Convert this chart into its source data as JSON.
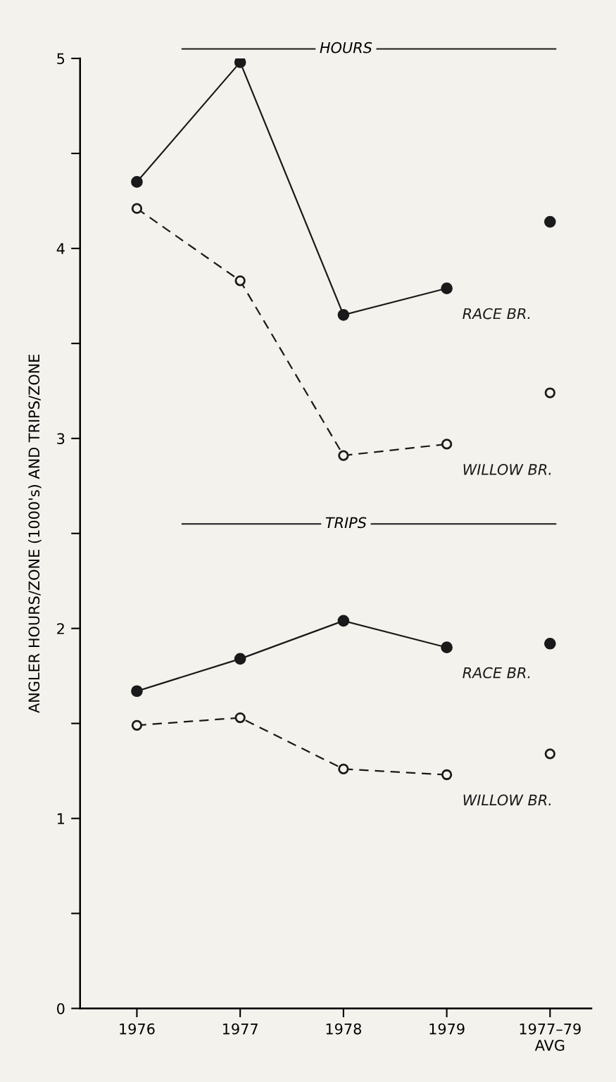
{
  "chart_data": {
    "type": "line",
    "ylabel": "ANGLER HOURS/ZONE (1000's) AND TRIPS/ZONE",
    "categories": [
      "1976",
      "1977",
      "1978",
      "1979",
      "1977–79\nAVG"
    ],
    "ylim": [
      0,
      5
    ],
    "yticks": [
      0,
      {
        "value": 0.5,
        "label": null
      },
      1,
      {
        "value": 1.5,
        "label": null
      },
      2,
      {
        "value": 2.5,
        "label": null
      },
      3,
      {
        "value": 3.5,
        "label": null
      },
      4,
      {
        "value": 4.5,
        "label": null
      },
      5
    ],
    "annotations": [
      "HOURS"
    ],
    "ref_lines": [
      {
        "axis": "y",
        "value": 2.55,
        "label": "TRIPS"
      }
    ],
    "grid": false,
    "series": [
      {
        "name": "RACE BR.",
        "color": "#1a1a1a",
        "marker": "circle",
        "line_style": "solid",
        "values": [
          4.35,
          4.98,
          3.65,
          3.79,
          null
        ]
      },
      {
        "color": "#1a1a1a",
        "type": "scatter",
        "marker": "circle",
        "line_style": "solid",
        "values": [
          null,
          null,
          null,
          null,
          4.14
        ]
      },
      {
        "name": "WILLOW BR.",
        "color": "#1a1a1a",
        "marker": "circle",
        "line_style": "dashed",
        "values": [
          4.21,
          3.83,
          2.91,
          2.97,
          null
        ]
      },
      {
        "color": "#1a1a1a",
        "type": "scatter",
        "marker": "circle",
        "line_style": "dashed",
        "values": [
          null,
          null,
          null,
          null,
          3.24
        ]
      },
      {
        "name": "RACE BR.",
        "color": "#1a1a1a",
        "marker": "circle",
        "line_style": "solid",
        "values": [
          1.67,
          1.84,
          2.04,
          1.9,
          null
        ]
      },
      {
        "color": "#1a1a1a",
        "type": "scatter",
        "marker": "circle",
        "line_style": "solid",
        "values": [
          null,
          null,
          null,
          null,
          1.92
        ]
      },
      {
        "name": "WILLOW BR.",
        "color": "#1a1a1a",
        "marker": "circle",
        "line_style": "dashed",
        "values": [
          1.49,
          1.53,
          1.26,
          1.23,
          null
        ]
      },
      {
        "color": "#1a1a1a",
        "type": "scatter",
        "marker": "circle",
        "line_style": "dashed",
        "values": [
          null,
          null,
          null,
          null,
          1.34
        ]
      }
    ]
  }
}
